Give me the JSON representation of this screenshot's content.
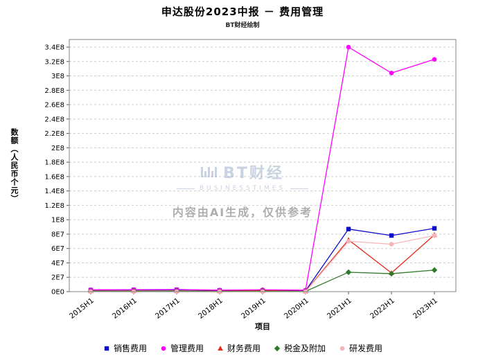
{
  "watermark": {
    "brand": "BT财经",
    "brand_sub": "BUSINESSTIMES",
    "notice": "内容由AI生成，仅供参考"
  },
  "chart_data": {
    "type": "line",
    "title": "申达股份2023中报 － 费用管理",
    "subtitle": "BT财经绘制",
    "xlabel": "项目",
    "ylabel": "数额（人民币个元）",
    "categories": [
      "2015H1",
      "2016H1",
      "2017H1",
      "2018H1",
      "2019H1",
      "2020H1",
      "2021H1",
      "2022H1",
      "2023H1"
    ],
    "ylim": [
      0,
      340000000
    ],
    "ytick_step": 20000000,
    "ytick_labels": [
      "0E0",
      "2E7",
      "4E7",
      "6E7",
      "8E7",
      "1E8",
      "1.2E8",
      "1.4E8",
      "1.6E8",
      "1.8E8",
      "2E8",
      "2.2E8",
      "2.4E8",
      "2.6E8",
      "2.8E8",
      "3E8",
      "3.2E8",
      "3.4E8"
    ],
    "grid": "horizontal-dashed",
    "legend_position": "bottom",
    "series": [
      {
        "name": "销售费用",
        "marker": "square",
        "color": "#0a0ac8",
        "values": [
          2200000,
          2400000,
          2500000,
          1800000,
          1500000,
          1200000,
          87000000,
          78000000,
          88000000
        ]
      },
      {
        "name": "管理费用",
        "marker": "circle",
        "color": "#ff00ff",
        "values": [
          2600000,
          2800000,
          3000000,
          2200000,
          2600000,
          2200000,
          340000000,
          304000000,
          323000000
        ]
      },
      {
        "name": "财务费用",
        "marker": "triangle",
        "color": "#e32819",
        "values": [
          900000,
          1000000,
          1100000,
          800000,
          1600000,
          600000,
          72000000,
          26000000,
          79000000
        ]
      },
      {
        "name": "税金及附加",
        "marker": "diamond",
        "color": "#2d7a28",
        "values": [
          600000,
          700000,
          800000,
          500000,
          700000,
          400000,
          27000000,
          25000000,
          30000000
        ]
      },
      {
        "name": "研发费用",
        "marker": "circle",
        "color": "#f6b4b8",
        "values": [
          0,
          0,
          0,
          0,
          0,
          0,
          70000000,
          66000000,
          78000000
        ]
      }
    ]
  }
}
